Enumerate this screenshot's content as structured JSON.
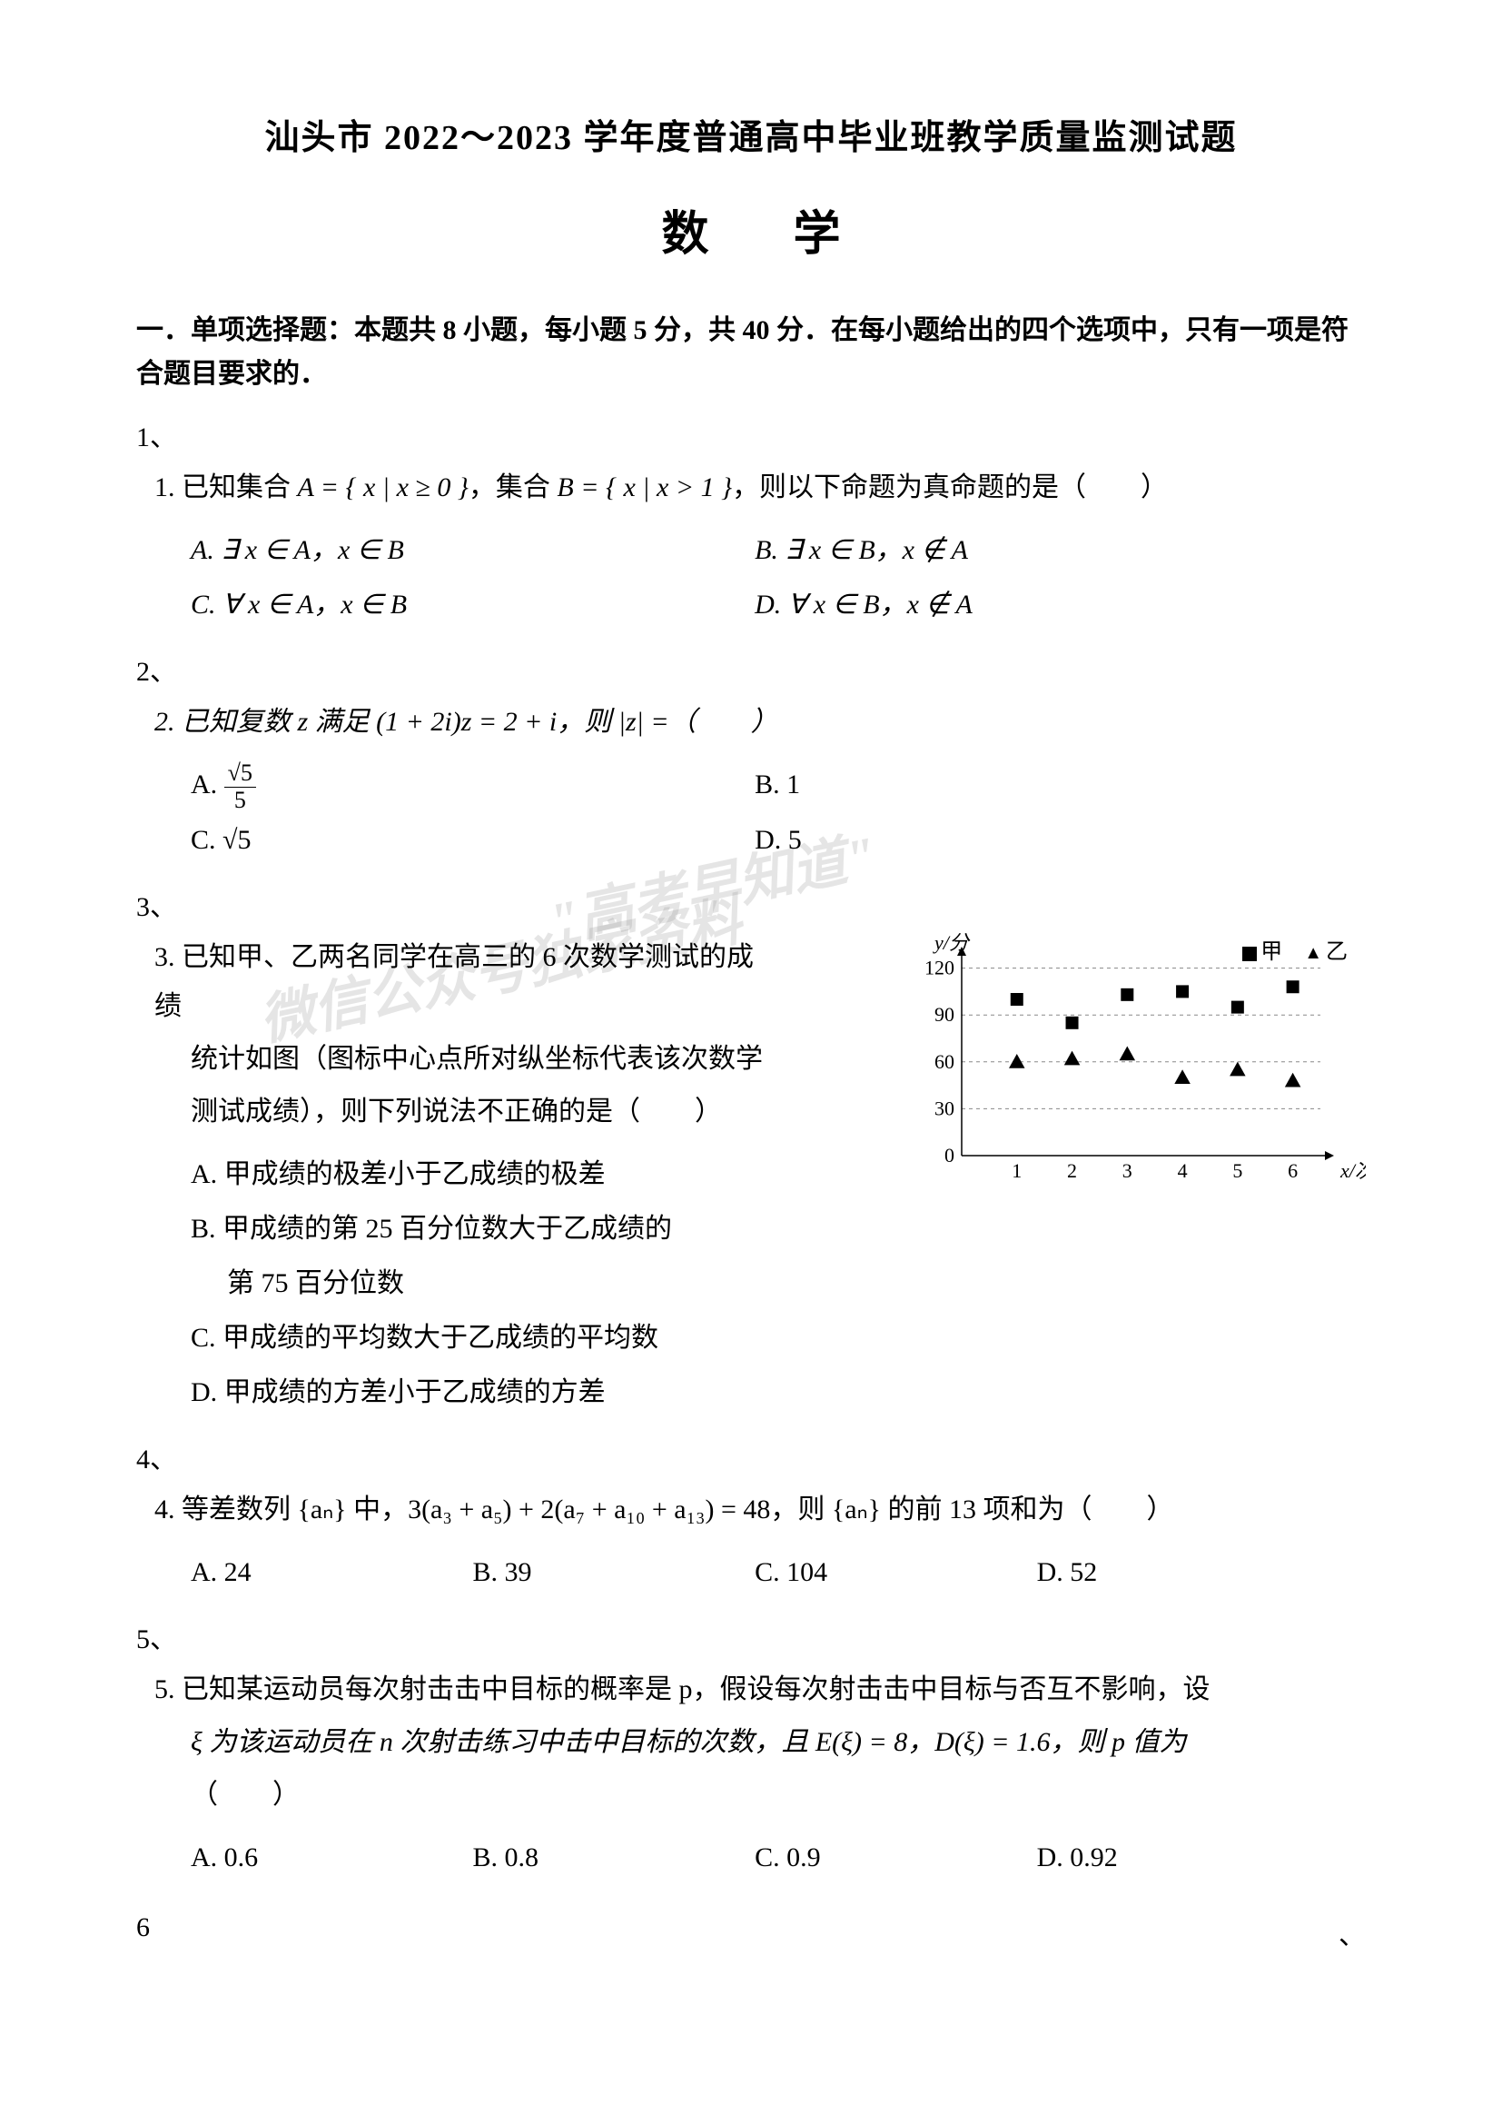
{
  "header": {
    "main_title": "汕头市 2022～2023 学年度普通高中毕业班教学质量监测试题",
    "subject": "数 学"
  },
  "section1": {
    "header": "一．单项选择题：本题共 8 小题，每小题 5 分，共 40 分．在每小题给出的四个选项中，只有一项是符合题目要求的．"
  },
  "q1": {
    "num": "1、",
    "stem_prefix": "1. 已知集合 ",
    "setA": "A = { x | x ≥ 0 }",
    "middle": "，集合 ",
    "setB": "B = { x | x > 1 }",
    "suffix": "，则以下命题为真命题的是（　　）",
    "optA": "A. ∃ x ∈ A，x ∈ B",
    "optB": "B. ∃ x ∈ B，x ∉ A",
    "optC": "C. ∀ x ∈ A，x ∈ B",
    "optD": "D. ∀ x ∈ B，x ∉ A"
  },
  "q2": {
    "num": "2、",
    "stem": "2. 已知复数 z 满足 (1 + 2i)z = 2 + i，则 |z| =（　　）",
    "optA_label": "A. ",
    "optA_frac_num": "√5",
    "optA_frac_den": "5",
    "optB": "B. 1",
    "optC_label": "C. ",
    "optC_val": "√5",
    "optD": "D. 5"
  },
  "q3": {
    "num": "3、",
    "stem_l1": "3. 已知甲、乙两名同学在高三的 6 次数学测试的成绩",
    "stem_l2": "统计如图（图标中心点所对纵坐标代表该次数学",
    "stem_l3": "测试成绩），则下列说法不正确的是（　　）",
    "optA": "A. 甲成绩的极差小于乙成绩的极差",
    "optB_l1": "B. 甲成绩的第 25 百分位数大于乙成绩的",
    "optB_l2": "第 75 百分位数",
    "optC": "C. 甲成绩的平均数大于乙成绩的平均数",
    "optD": "D. 甲成绩的方差小于乙成绩的方差",
    "chart": {
      "type": "scatter",
      "xlabel": "x/次",
      "ylabel": "y/分",
      "legend_jia": "甲",
      "legend_yi": "乙",
      "xlim": [
        0,
        6.5
      ],
      "ylim": [
        0,
        125
      ],
      "yticks": [
        0,
        30,
        60,
        90,
        120
      ],
      "xticks": [
        0,
        1,
        2,
        3,
        4,
        5,
        6
      ],
      "grid_color": "#888888",
      "axis_color": "#000000",
      "jia_marker": "square",
      "yi_marker": "triangle",
      "marker_color": "#000000",
      "marker_size": 14,
      "jia_points": [
        [
          1,
          100
        ],
        [
          2,
          85
        ],
        [
          3,
          103
        ],
        [
          4,
          105
        ],
        [
          5,
          95
        ],
        [
          6,
          108
        ]
      ],
      "yi_points": [
        [
          1,
          60
        ],
        [
          2,
          62
        ],
        [
          3,
          65
        ],
        [
          4,
          50
        ],
        [
          5,
          55
        ],
        [
          6,
          48
        ]
      ],
      "background_color": "#ffffff",
      "tick_fontsize": 22
    }
  },
  "q4": {
    "num": "4、",
    "stem": "4. 等差数列 {aₙ} 中，3(a₃ + a₅) + 2(a₇ + a₁₀ + a₁₃) = 48，则 {aₙ} 的前 13 项和为（　　）",
    "optA": "A. 24",
    "optB": "B. 39",
    "optC": "C. 104",
    "optD": "D. 52"
  },
  "q5": {
    "num": "5、",
    "stem_l1": "5. 已知某运动员每次射击击中目标的概率是 p，假设每次射击击中目标与否互不影响，设",
    "stem_l2": "ξ 为该运动员在 n 次射击练习中击中目标的次数，且 E(ξ) = 8，D(ξ) = 1.6，则 p 值为",
    "stem_l3": "（　　）",
    "optA": "A. 0.6",
    "optB": "B. 0.8",
    "optC": "C. 0.9",
    "optD": "D. 0.92"
  },
  "q6": {
    "num": "6"
  },
  "floating": {
    "punct": "、"
  },
  "watermark": {
    "line1": "\"高考早知道\"",
    "line2": "微信公众号独家资料"
  }
}
